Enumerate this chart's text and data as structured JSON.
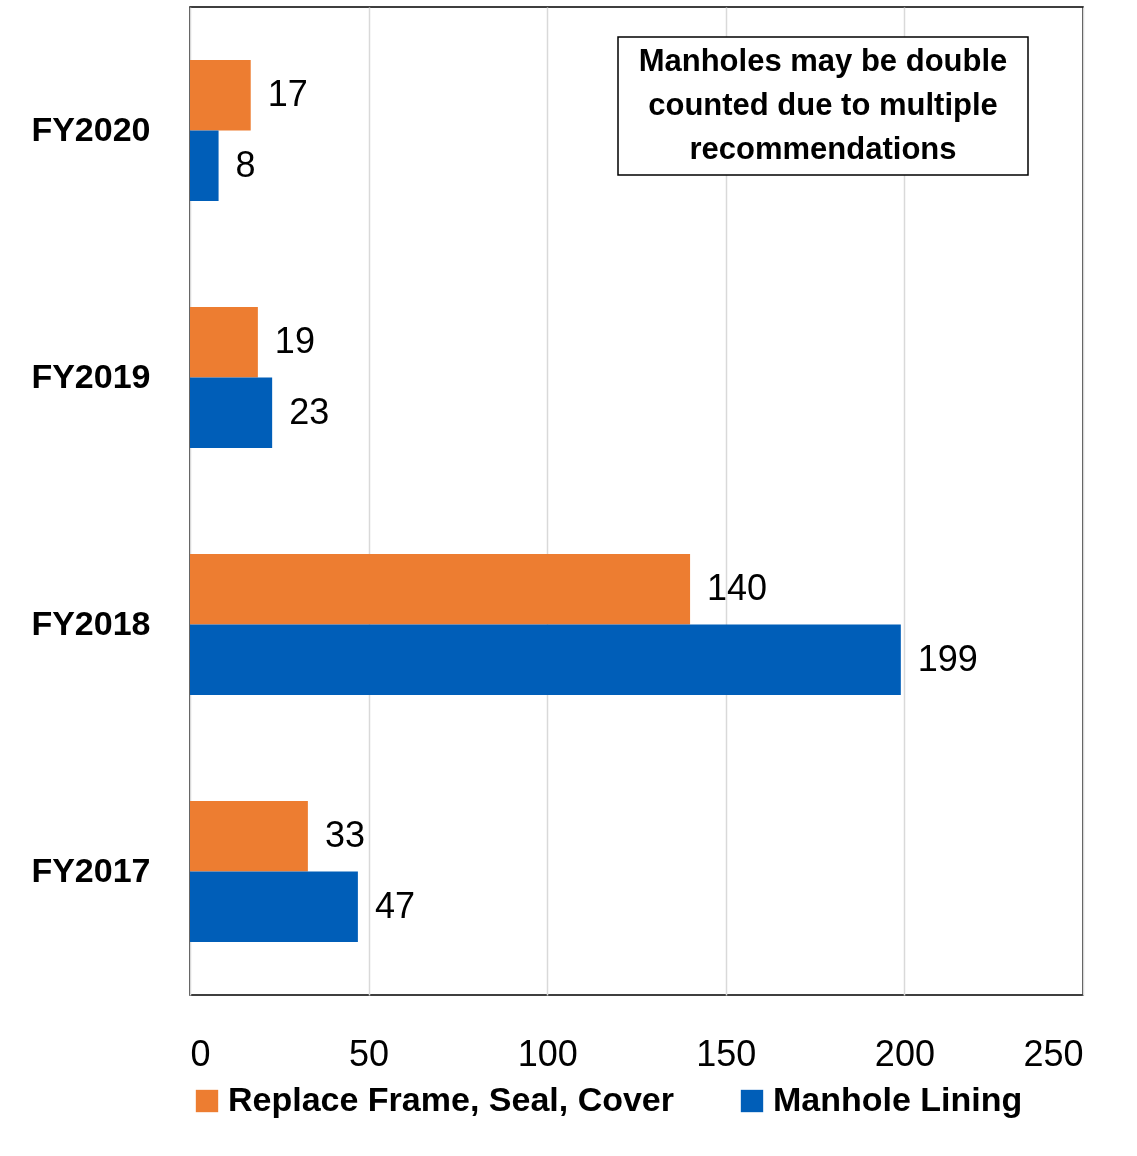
{
  "chart_data": {
    "type": "bar",
    "orientation": "horizontal",
    "categories": [
      "FY2020",
      "FY2019",
      "FY2018",
      "FY2017"
    ],
    "series": [
      {
        "name": "Replace Frame, Seal, Cover",
        "color": "#ed7d31",
        "values": [
          17,
          19,
          140,
          33
        ]
      },
      {
        "name": "Manhole Lining",
        "color": "#005eb8",
        "values": [
          8,
          23,
          199,
          47
        ]
      }
    ],
    "xlim": [
      0,
      250
    ],
    "xticks": [
      0,
      50,
      100,
      150,
      200,
      250
    ],
    "grid": "x",
    "legend": "bottom",
    "data_labels": true,
    "annotations": [
      "Manholes may be double counted due to multiple recommendations"
    ]
  }
}
